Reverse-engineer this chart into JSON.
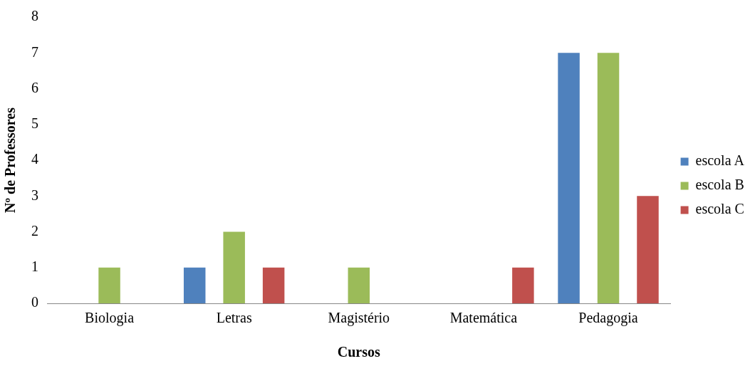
{
  "chart_data": {
    "type": "bar",
    "xlabel": "Cursos",
    "ylabel": "Nº de Professores",
    "categories": [
      "Biologia",
      "Letras",
      "Magistério",
      "Matemática",
      "Pedagogia"
    ],
    "series": [
      {
        "name": "escola A",
        "color": "#4f81bd",
        "values": [
          0,
          1,
          0,
          0,
          7
        ]
      },
      {
        "name": "escola B",
        "color": "#9bbb59",
        "values": [
          1,
          2,
          1,
          0,
          7
        ]
      },
      {
        "name": "escola C",
        "color": "#c0504d",
        "values": [
          0,
          1,
          0,
          1,
          3
        ]
      }
    ],
    "ylim": [
      0,
      8
    ],
    "yticks": [
      0,
      1,
      2,
      3,
      4,
      5,
      6,
      7,
      8
    ],
    "grid": false,
    "legend": "right"
  }
}
